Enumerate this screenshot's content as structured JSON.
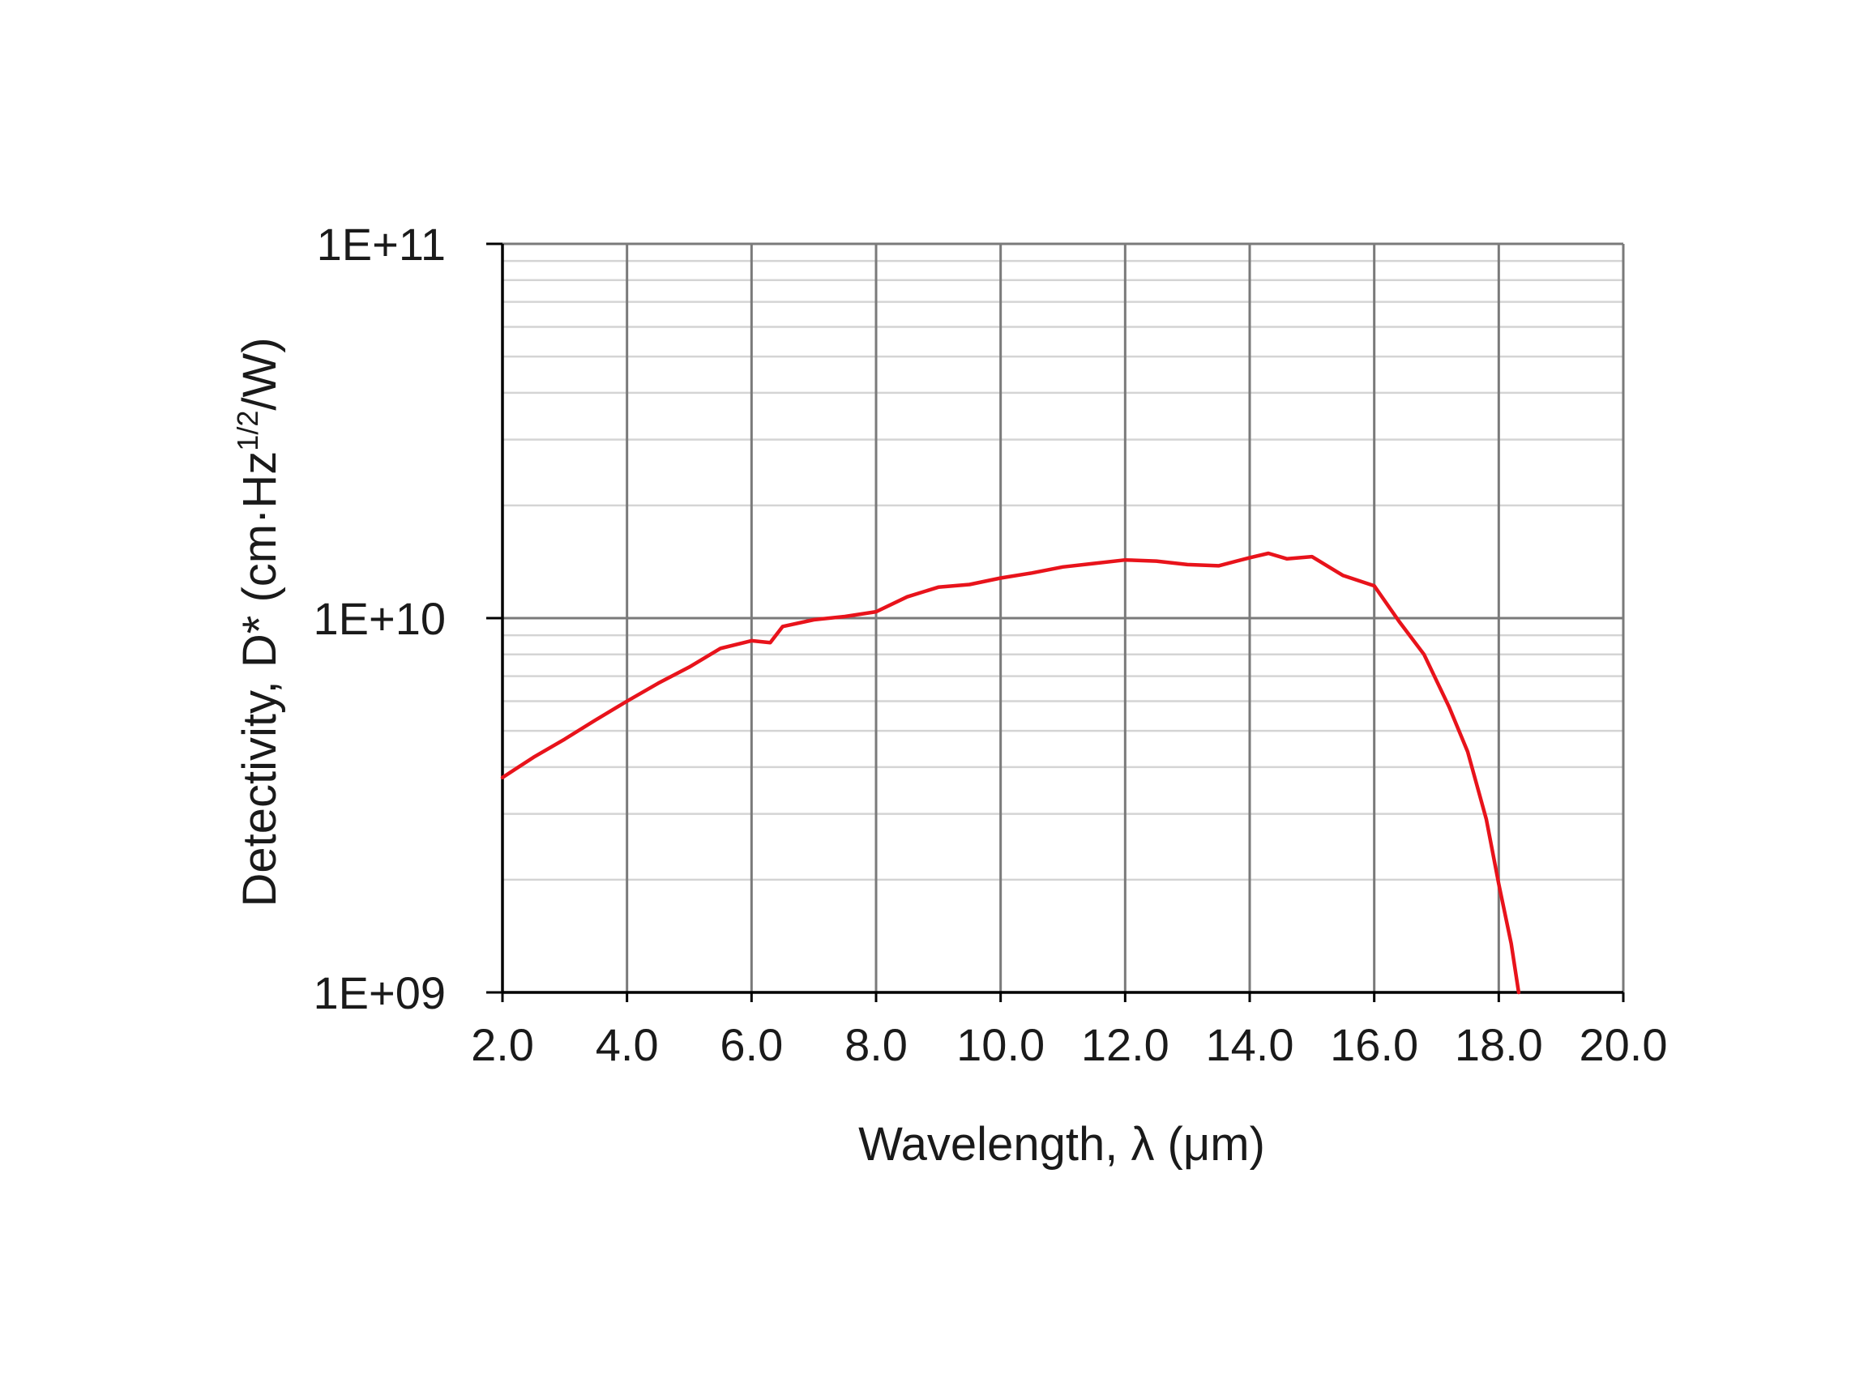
{
  "chart_data": {
    "type": "line",
    "title": "",
    "xlabel": "Wavelength, λ (μm)",
    "ylabel": {
      "main": "Detectivity, D* (cm·Hz",
      "superscript": "1/2",
      "suffix": "/W)"
    },
    "xlim": [
      2.0,
      20.0
    ],
    "ylim": [
      1000000000,
      100000000000
    ],
    "yscale": "log",
    "grid": true,
    "x_ticks": [
      2.0,
      4.0,
      6.0,
      8.0,
      10.0,
      12.0,
      14.0,
      16.0,
      18.0,
      20.0
    ],
    "x_tick_labels": [
      "2.0",
      "4.0",
      "6.0",
      "8.0",
      "10.0",
      "12.0",
      "14.0",
      "16.0",
      "18.0",
      "20.0"
    ],
    "y_ticks": [
      1000000000,
      10000000000,
      100000000000
    ],
    "y_tick_labels": [
      "1E+09",
      "1E+10",
      "1E+11"
    ],
    "line_color": "#e8131b",
    "series": [
      {
        "x": [
          2.0,
          2.5,
          3.0,
          3.5,
          4.0,
          4.5,
          5.0,
          5.5,
          6.0,
          6.3,
          6.5,
          7.0,
          7.5,
          8.0,
          8.5,
          9.0,
          9.5,
          10.0,
          10.5,
          11.0,
          11.5,
          12.0,
          12.5,
          13.0,
          13.5,
          14.0,
          14.3,
          14.6,
          15.0,
          15.5,
          16.0,
          16.4,
          16.8,
          17.2,
          17.5,
          17.8,
          18.0,
          18.2,
          18.32
        ],
        "y": [
          3750000000,
          4250000000,
          4750000000,
          5350000000,
          6000000000,
          6700000000,
          7400000000,
          8300000000,
          8700000000,
          8600000000,
          9500000000,
          9900000000,
          10100000000,
          10400000000,
          11400000000,
          12100000000,
          12300000000,
          12800000000,
          13200000000,
          13700000000,
          14000000000,
          14300000000,
          14200000000,
          13900000000,
          13800000000,
          14500000000,
          14900000000,
          14400000000,
          14600000000,
          13000000000,
          12200000000,
          9800000000,
          8000000000,
          5800000000,
          4400000000,
          2900000000,
          1950000000,
          1350000000,
          1000000000
        ]
      }
    ]
  }
}
